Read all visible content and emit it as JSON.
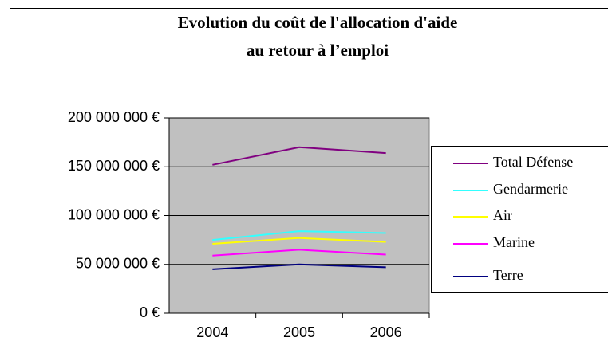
{
  "chart_data": {
    "type": "line",
    "title": "Evolution du coût de l'allocation d'aide",
    "subtitle": "au retour à l’emploi",
    "categories": [
      "2004",
      "2005",
      "2006"
    ],
    "series": [
      {
        "name": "Total Défense",
        "color": "#800080",
        "values": [
          152000000,
          170000000,
          164000000
        ]
      },
      {
        "name": "Gendarmerie",
        "color": "#33ffff",
        "values": [
          75000000,
          84000000,
          82000000
        ]
      },
      {
        "name": "Air",
        "color": "#ffff00",
        "values": [
          71000000,
          77000000,
          73000000
        ]
      },
      {
        "name": "Marine",
        "color": "#ff00ff",
        "values": [
          59000000,
          65000000,
          60000000
        ]
      },
      {
        "name": "Terre",
        "color": "#000080",
        "values": [
          45000000,
          50000000,
          47000000
        ]
      }
    ],
    "ylim": [
      0,
      200000000
    ],
    "yticks": [
      {
        "value": 0,
        "label": "0 €"
      },
      {
        "value": 50000000,
        "label": "50 000 000 €"
      },
      {
        "value": 100000000,
        "label": "100 000 000 €"
      },
      {
        "value": 150000000,
        "label": "150 000 000 €"
      },
      {
        "value": 200000000,
        "label": "200 000 000 €"
      }
    ],
    "grid": true,
    "legend": "right",
    "plot_background": "#c0c0c0"
  }
}
